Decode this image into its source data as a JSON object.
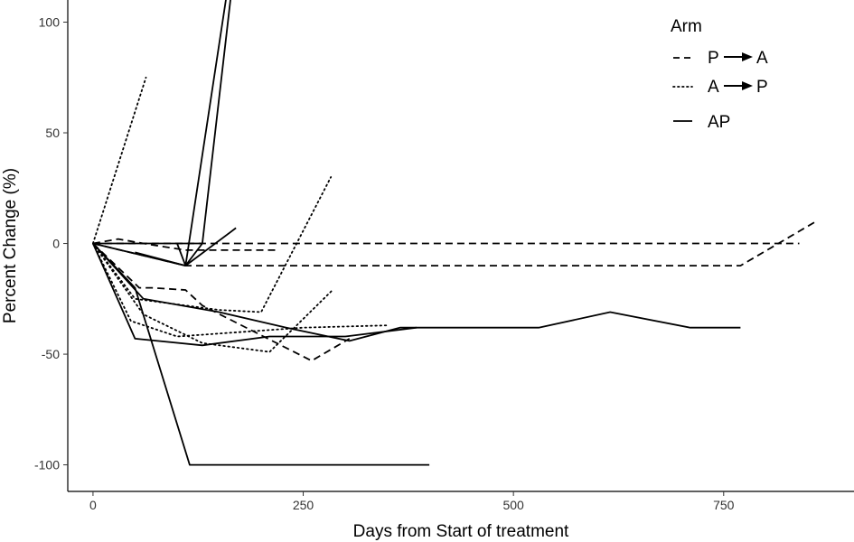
{
  "chart_data": {
    "type": "line",
    "title": "",
    "xlabel": "Days from Start of treatment",
    "ylabel": "Percent Change (%)",
    "xlim": [
      -30,
      905
    ],
    "ylim": [
      -112,
      110
    ],
    "x_ticks": [
      0,
      250,
      500,
      750
    ],
    "x_tick_labels": [
      "0",
      "250",
      "500",
      "750"
    ],
    "y_ticks": [
      -100,
      -50,
      0,
      50,
      100
    ],
    "y_tick_labels": [
      "-100",
      "-50",
      "0",
      "50",
      "100"
    ],
    "grid": false,
    "legend": {
      "title": "Arm",
      "placement": "top-right",
      "entries": [
        {
          "arm": "pa",
          "label_start": "P",
          "label_end": "A",
          "linestyle": "dashed"
        },
        {
          "arm": "ap_seq",
          "label_start": "A",
          "label_end": "P",
          "linestyle": "dotted"
        },
        {
          "arm": "ap",
          "label": "AP",
          "linestyle": "solid"
        }
      ]
    },
    "series": [
      {
        "arm": "pa",
        "linestyle": "dashed",
        "points": [
          [
            0,
            0
          ],
          [
            30,
            2
          ],
          [
            60,
            0
          ],
          [
            110,
            -3
          ],
          [
            220,
            -3
          ]
        ]
      },
      {
        "arm": "pa",
        "linestyle": "dashed",
        "points": [
          [
            0,
            0
          ],
          [
            140,
            0
          ],
          [
            420,
            0
          ],
          [
            840,
            0
          ]
        ]
      },
      {
        "arm": "pa",
        "linestyle": "dashed",
        "points": [
          [
            0,
            0
          ],
          [
            110,
            -10
          ],
          [
            380,
            -10
          ],
          [
            770,
            -10
          ],
          [
            860,
            10
          ]
        ]
      },
      {
        "arm": "pa",
        "linestyle": "dashed",
        "points": [
          [
            0,
            0
          ],
          [
            55,
            -20
          ],
          [
            70,
            -20
          ],
          [
            110,
            -21
          ],
          [
            130,
            -28
          ],
          [
            260,
            -53
          ],
          [
            305,
            -43
          ]
        ]
      },
      {
        "arm": "ap_seq",
        "linestyle": "dotted",
        "points": [
          [
            0,
            0
          ],
          [
            63,
            75
          ]
        ]
      },
      {
        "arm": "ap_seq",
        "linestyle": "dotted",
        "points": [
          [
            0,
            0
          ],
          [
            50,
            -25
          ],
          [
            150,
            -30
          ],
          [
            200,
            -31
          ],
          [
            283,
            30
          ]
        ]
      },
      {
        "arm": "ap_seq",
        "linestyle": "dotted",
        "points": [
          [
            0,
            0
          ],
          [
            60,
            -32
          ],
          [
            130,
            -45
          ],
          [
            210,
            -49
          ],
          [
            285,
            -21
          ]
        ]
      },
      {
        "arm": "ap_seq",
        "linestyle": "dotted",
        "points": [
          [
            0,
            0
          ],
          [
            45,
            -35
          ],
          [
            100,
            -42
          ],
          [
            250,
            -38
          ],
          [
            350,
            -37
          ]
        ]
      },
      {
        "arm": "ap",
        "linestyle": "solid",
        "points": [
          [
            0,
            0
          ],
          [
            110,
            0
          ],
          [
            130,
            0
          ]
        ]
      },
      {
        "arm": "ap",
        "linestyle": "solid",
        "points": [
          [
            0,
            0
          ],
          [
            110,
            -10
          ],
          [
            160,
            115
          ]
        ]
      },
      {
        "arm": "ap",
        "linestyle": "solid",
        "points": [
          [
            50,
            -4
          ],
          [
            110,
            -10
          ],
          [
            170,
            7
          ]
        ]
      },
      {
        "arm": "ap",
        "linestyle": "solid",
        "points": [
          [
            100,
            0
          ],
          [
            110,
            -10
          ],
          [
            130,
            0
          ],
          [
            165,
            115
          ]
        ]
      },
      {
        "arm": "ap",
        "linestyle": "solid",
        "points": [
          [
            0,
            0
          ],
          [
            50,
            -20
          ],
          [
            115,
            -100
          ],
          [
            400,
            -100
          ]
        ]
      },
      {
        "arm": "ap",
        "linestyle": "solid",
        "points": [
          [
            0,
            0
          ],
          [
            50,
            -43
          ],
          [
            130,
            -46
          ],
          [
            210,
            -42
          ],
          [
            300,
            -42
          ],
          [
            385,
            -38
          ]
        ]
      },
      {
        "arm": "ap",
        "linestyle": "solid",
        "points": [
          [
            0,
            0
          ],
          [
            60,
            -25
          ],
          [
            150,
            -31
          ],
          [
            230,
            -38
          ],
          [
            305,
            -44
          ],
          [
            365,
            -38
          ],
          [
            530,
            -38
          ],
          [
            615,
            -31
          ],
          [
            710,
            -38
          ],
          [
            770,
            -38
          ]
        ]
      }
    ]
  }
}
